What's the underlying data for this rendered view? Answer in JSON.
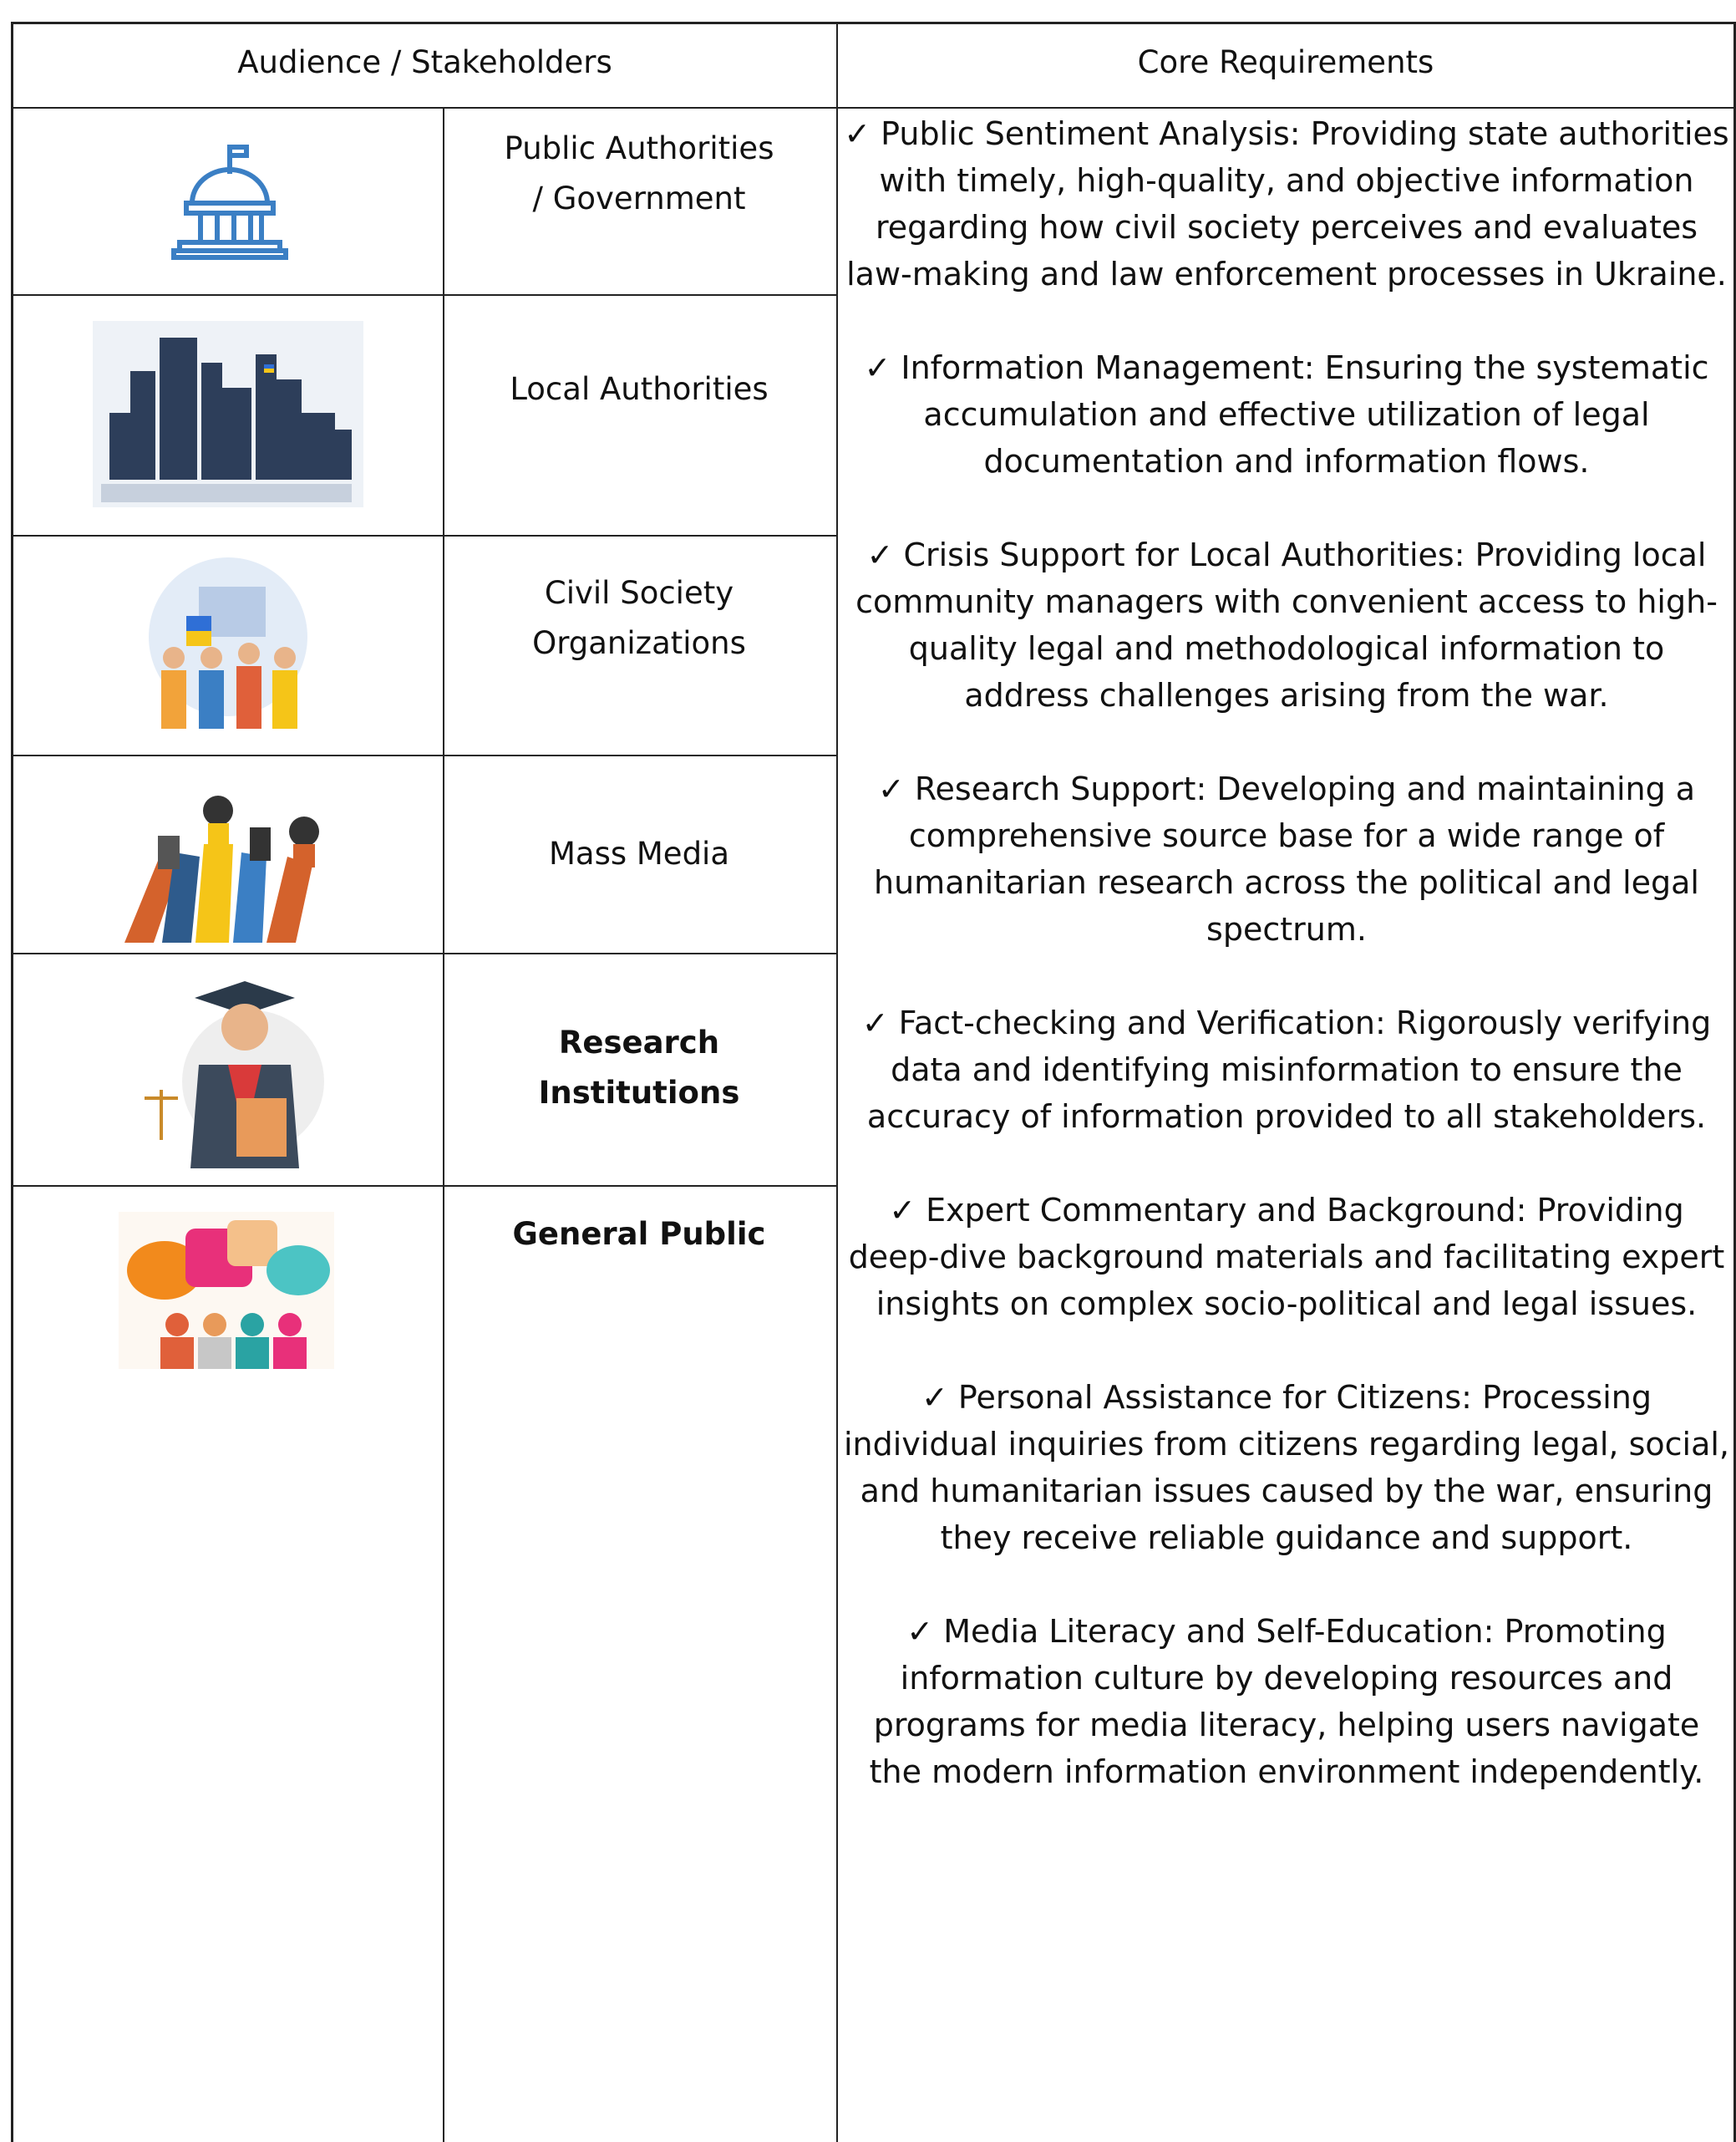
{
  "table": {
    "header": [
      "Audience / Stakeholders",
      "Core Requirements"
    ],
    "stakeholders": [
      "Public Authorities / Government",
      "Local Authorities",
      "Civil Society Organizations",
      "Mass Media",
      "Research Institutions",
      "General Public"
    ],
    "requirements": [
      "✓ Public Sentiment Analysis: Providing state authorities with timely, high-quality, and objective information regarding how civil society perceives and evaluates law-making and law enforcement processes in Ukraine.",
      "✓ Information Management: Ensuring the systematic accumulation and effective utilization of legal documentation and information flows.",
      "✓ Crisis Support for Local Authorities: Providing local community managers with convenient access to high-quality legal and methodological information to address challenges arising from the war.",
      "✓ Research Support: Developing and maintaining a comprehensive source base for a wide range of humanitarian research across the political and legal spectrum.",
      "✓ Fact-checking and Verification: Rigorously verifying data and identifying misinformation to ensure the accuracy of information provided to all stakeholders.",
      "✓ Expert Commentary and Background: Providing deep-dive background materials and facilitating expert insights on complex socio-political and legal issues.",
      "✓ Personal Assistance for Citizens: Processing individual inquiries from citizens regarding legal, social, and humanitarian issues caused by the war, ensuring they receive reliable guidance and support.",
      "✓ Media Literacy and Self-Education: Promoting information culture by developing resources and programs for media literacy, helping users navigate the modern information environment independently."
    ]
  }
}
